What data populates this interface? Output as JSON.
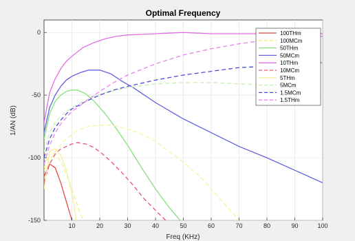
{
  "chart_data": {
    "type": "line",
    "title": "Optimal Frequency",
    "xlabel": "Freq (KHz)",
    "ylabel": "1/AN (dB)",
    "xlim": [
      0,
      100
    ],
    "ylim": [
      -150,
      10
    ],
    "xticks": [
      10,
      20,
      30,
      40,
      50,
      60,
      70,
      80,
      90,
      100
    ],
    "yticks": [
      0,
      -50,
      -100,
      -150
    ],
    "grid": true,
    "legend_position": "top-right",
    "series": [
      {
        "name": "100THm",
        "color": "#e8483a",
        "dash": "solid",
        "x": [
          0,
          2,
          4,
          6,
          8,
          10,
          12
        ],
        "y": [
          -115,
          -105,
          -108,
          -120,
          -135,
          -150,
          -165
        ]
      },
      {
        "name": "100MCm",
        "color": "#f2ef8a",
        "dash": "dashed",
        "x": [
          0,
          2,
          4,
          6,
          8,
          10,
          12,
          14,
          16
        ],
        "y": [
          -108,
          -95,
          -97,
          -103,
          -113,
          -125,
          -138,
          -150,
          -160
        ]
      },
      {
        "name": "50THm",
        "color": "#86e07a",
        "dash": "solid",
        "x": [
          0,
          2,
          4,
          6,
          8,
          10,
          12,
          15,
          18,
          22,
          26,
          30,
          35,
          40,
          45,
          50
        ],
        "y": [
          -85,
          -65,
          -55,
          -50,
          -47,
          -46,
          -46,
          -49,
          -55,
          -65,
          -77,
          -90,
          -108,
          -125,
          -140,
          -153
        ]
      },
      {
        "name": "50MCm",
        "color": "#6060e0",
        "dash": "solid",
        "x": [
          0,
          2,
          4,
          6,
          8,
          10,
          13,
          16,
          20,
          24,
          28,
          32,
          36,
          40,
          50,
          60,
          70,
          80,
          90,
          100
        ],
        "y": [
          -80,
          -60,
          -50,
          -43,
          -38,
          -35,
          -32,
          -30,
          -30,
          -33,
          -39,
          -44,
          -50,
          -56,
          -69,
          -80,
          -91,
          -100,
          -110,
          -120
        ]
      },
      {
        "name": "10THm",
        "color": "#e26ee2",
        "dash": "solid",
        "x": [
          0,
          2,
          4,
          6,
          8,
          10,
          14,
          18,
          22,
          26,
          30,
          40,
          50,
          60,
          70,
          80,
          90,
          100
        ],
        "y": [
          -72,
          -48,
          -37,
          -29,
          -23,
          -19,
          -12,
          -8,
          -5,
          -3,
          -2,
          -1,
          0,
          -1,
          -1,
          -1,
          -1,
          -1
        ]
      },
      {
        "name": "10MCm",
        "color": "#e8566a",
        "dash": "dashed",
        "x": [
          0,
          2,
          4,
          6,
          8,
          10,
          12,
          15,
          18,
          21,
          24,
          28,
          32,
          36,
          40,
          45
        ],
        "y": [
          -120,
          -105,
          -97,
          -93,
          -91,
          -89,
          -88,
          -89,
          -92,
          -97,
          -103,
          -112,
          -122,
          -133,
          -142,
          -153
        ]
      },
      {
        "name": "5THm",
        "color": "#f5f0a0",
        "dash": "solid",
        "x": [
          0,
          2,
          4,
          6,
          8,
          10,
          12
        ],
        "y": [
          -125,
          -95,
          -93,
          -98,
          -110,
          -128,
          -155
        ]
      },
      {
        "name": "5MCm",
        "color": "#c8edb0",
        "dash": "dashed",
        "x": [
          0,
          2,
          4,
          6,
          8,
          10,
          14,
          18,
          22,
          26,
          30,
          40,
          50,
          60,
          70,
          80,
          90,
          100
        ],
        "y": [
          -95,
          -80,
          -72,
          -67,
          -63,
          -60,
          -55,
          -51,
          -48,
          -46,
          -44,
          -41,
          -40,
          -40,
          -41,
          -42,
          -42,
          -43
        ]
      },
      {
        "name": "1.5MCm",
        "color": "#4a4ad8",
        "dash": "dashed",
        "x": [
          0,
          2,
          4,
          6,
          8,
          10,
          15,
          20,
          25,
          30,
          40,
          50,
          60,
          70,
          80,
          90,
          100
        ],
        "y": [
          -100,
          -85,
          -76,
          -70,
          -65,
          -61,
          -55,
          -50,
          -46,
          -43,
          -38,
          -34,
          -31,
          -28,
          -27,
          -25,
          -24
        ]
      },
      {
        "name": "1.5THm",
        "color": "#ea80ea",
        "dash": "dashed",
        "x": [
          0,
          2,
          4,
          6,
          8,
          10,
          15,
          20,
          25,
          30,
          40,
          50,
          60,
          70,
          80,
          90,
          100
        ],
        "y": [
          -105,
          -90,
          -80,
          -73,
          -68,
          -63,
          -55,
          -47,
          -40,
          -34,
          -25,
          -18,
          -13,
          -9,
          -6,
          -4,
          -3
        ]
      },
      {
        "name": "",
        "color": "#f6f29a",
        "dash": "dashed",
        "x": [
          0,
          4,
          8,
          12,
          16,
          20,
          24,
          28,
          34,
          40,
          48,
          56,
          64,
          70,
          72
        ],
        "y": [
          -110,
          -95,
          -85,
          -78,
          -75,
          -74,
          -74,
          -76,
          -80,
          -87,
          -100,
          -115,
          -135,
          -150,
          -156
        ]
      }
    ]
  }
}
